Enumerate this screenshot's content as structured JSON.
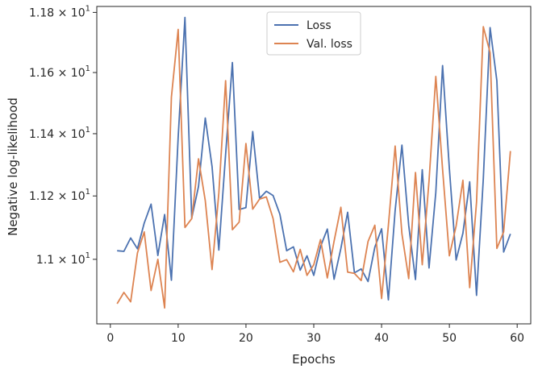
{
  "chart_data": {
    "type": "line",
    "xlabel": "Epochs",
    "ylabel": "Negative log-likelihood",
    "yscale": "log",
    "xlim": [
      -2,
      62
    ],
    "ylim": [
      10.8,
      11.82
    ],
    "xticks": [
      0,
      10,
      20,
      30,
      40,
      50,
      60
    ],
    "yticks": [
      {
        "value": 11.0,
        "mantissa": "1.1",
        "exponent": "1"
      },
      {
        "value": 11.2,
        "mantissa": "1.12",
        "exponent": "1"
      },
      {
        "value": 11.4,
        "mantissa": "1.14",
        "exponent": "1"
      },
      {
        "value": 11.6,
        "mantissa": "1.16",
        "exponent": "1"
      },
      {
        "value": 11.8,
        "mantissa": "1.18",
        "exponent": "1"
      }
    ],
    "legend": {
      "position": "top-center"
    },
    "x": [
      1,
      2,
      3,
      4,
      5,
      6,
      7,
      8,
      9,
      10,
      11,
      12,
      13,
      14,
      15,
      16,
      17,
      18,
      19,
      20,
      21,
      22,
      23,
      24,
      25,
      26,
      27,
      28,
      29,
      30,
      31,
      32,
      33,
      34,
      35,
      36,
      37,
      38,
      39,
      40,
      41,
      42,
      43,
      44,
      45,
      46,
      47,
      48,
      49,
      50,
      51,
      52,
      53,
      54,
      55,
      56,
      57,
      58,
      59
    ],
    "series": [
      {
        "name": "Loss",
        "color": "#4c72b0",
        "values": [
          11.027,
          11.025,
          11.067,
          11.033,
          11.114,
          11.174,
          11.012,
          11.141,
          10.935,
          11.389,
          11.783,
          11.13,
          11.23,
          11.451,
          11.294,
          11.029,
          11.333,
          11.633,
          11.157,
          11.163,
          11.407,
          11.192,
          11.215,
          11.201,
          11.142,
          11.027,
          11.039,
          10.966,
          11.011,
          10.95,
          11.04,
          11.095,
          10.938,
          11.034,
          11.148,
          10.958,
          10.97,
          10.931,
          11.038,
          11.096,
          10.874,
          11.154,
          11.363,
          11.107,
          10.937,
          11.284,
          10.973,
          11.211,
          11.623,
          11.288,
          10.998,
          11.082,
          11.245,
          10.888,
          11.255,
          11.749,
          11.573,
          11.023,
          11.08
        ]
      },
      {
        "name": "Val. loss",
        "color": "#dd8452",
        "values": [
          10.862,
          10.897,
          10.868,
          11.02,
          11.086,
          10.903,
          11.0,
          10.849,
          11.519,
          11.743,
          11.1,
          11.128,
          11.319,
          11.185,
          10.968,
          11.209,
          11.573,
          11.093,
          11.117,
          11.368,
          11.158,
          11.19,
          11.197,
          11.128,
          10.991,
          10.999,
          10.961,
          11.031,
          10.95,
          10.983,
          11.062,
          10.942,
          11.057,
          11.164,
          10.96,
          10.956,
          10.934,
          11.056,
          11.107,
          10.878,
          11.106,
          11.36,
          11.08,
          10.94,
          11.275,
          10.983,
          11.248,
          11.587,
          11.285,
          11.011,
          11.105,
          11.25,
          10.912,
          11.18,
          11.752,
          11.666,
          11.034,
          11.086,
          11.344
        ]
      }
    ]
  }
}
